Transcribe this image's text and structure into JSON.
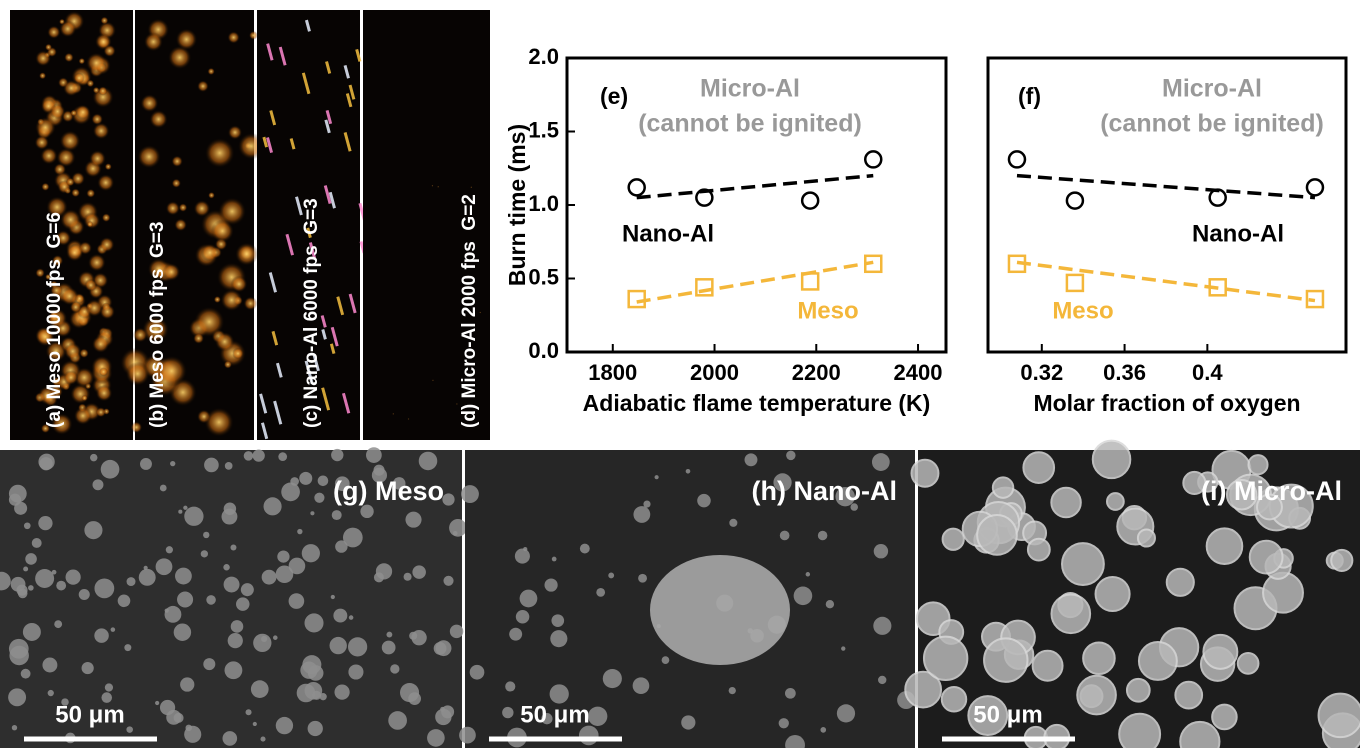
{
  "chart_data": [
    {
      "type": "scatter",
      "xlabel": "Adiabatic flame temperature (K)",
      "ylabel": "Burn time (ms)",
      "annotations": [
        "(e)",
        "Micro-Al",
        "(cannot be ignited)"
      ],
      "xlim": [
        1710,
        2455
      ],
      "xticks": [
        1800,
        2000,
        2200,
        2400
      ],
      "ylim": [
        0,
        2.0
      ],
      "yticks": [
        {
          "value": 0,
          "label": "0.0"
        },
        {
          "value": 0.5,
          "label": "0.5"
        },
        {
          "value": 1,
          "label": "1.0"
        },
        {
          "value": 1.5,
          "label": "1.5"
        },
        {
          "value": 2,
          "label": "2.0"
        }
      ],
      "series": [
        {
          "name": "Nano-Al",
          "color": "#000000",
          "marker": "circle",
          "x": [
            1847,
            1980,
            2188,
            2312
          ],
          "values": [
            1.12,
            1.05,
            1.03,
            1.31
          ],
          "fit": {
            "x": [
              1847,
              2312
            ],
            "values": [
              1.05,
              1.2
            ]
          }
        },
        {
          "name": "Meso",
          "color": "#f4b73a",
          "marker": "square",
          "x": [
            1847,
            1980,
            2188,
            2312
          ],
          "values": [
            0.36,
            0.44,
            0.48,
            0.6
          ],
          "fit": {
            "x": [
              1847,
              2312
            ],
            "values": [
              0.34,
              0.61
            ]
          }
        }
      ]
    },
    {
      "type": "scatter",
      "xlabel": "Molar fraction of oxygen",
      "annotations": [
        "(f)",
        "Micro-Al",
        "(cannot be ignited)"
      ],
      "xlim": [
        0.294,
        0.467
      ],
      "xticks": [
        0.32,
        0.36,
        0.4
      ],
      "ylim": [
        0,
        2.0
      ],
      "series": [
        {
          "name": "Nano-Al",
          "color": "#000000",
          "marker": "circle",
          "x": [
            0.308,
            0.336,
            0.405,
            0.452
          ],
          "values": [
            1.31,
            1.03,
            1.05,
            1.12
          ],
          "fit": {
            "x": [
              0.308,
              0.452
            ],
            "values": [
              1.2,
              1.05
            ]
          }
        },
        {
          "name": "Meso",
          "color": "#f4b73a",
          "marker": "square",
          "x": [
            0.308,
            0.336,
            0.405,
            0.452
          ],
          "values": [
            0.6,
            0.47,
            0.44,
            0.36
          ],
          "fit": {
            "x": [
              0.308,
              0.452
            ],
            "values": [
              0.61,
              0.35
            ]
          }
        }
      ]
    }
  ],
  "photo_panels": [
    "(a) Meso 10000 fps  G=6",
    "(b) Meso 6000 fps  G=3",
    "(c) Nano-Al 6000 fps  G=3",
    "(d) Micro-Al 2000 fps  G=2"
  ],
  "sem_panels": [
    {
      "label": "(g) Meso",
      "scale": "50 μm"
    },
    {
      "label": "(h) Nano-Al",
      "scale": "50 μm"
    },
    {
      "label": "(i) Micro-Al",
      "scale": "50 μm"
    }
  ]
}
